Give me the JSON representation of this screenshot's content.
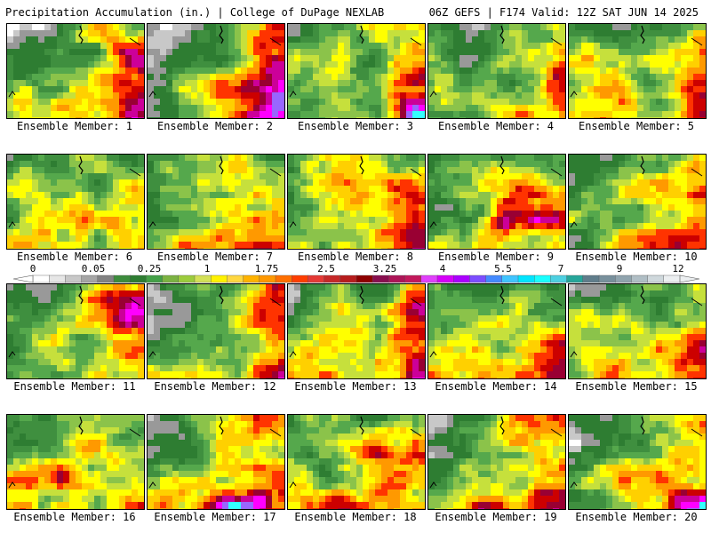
{
  "header": {
    "left": "Precipitation Accumulation (in.) | College of DuPage NEXLAB",
    "right": "06Z GEFS | F174 Valid: 12Z SAT JUN 14 2025"
  },
  "label_prefix": "Ensemble Member: ",
  "members": [
    1,
    2,
    3,
    4,
    5,
    6,
    7,
    8,
    9,
    10,
    11,
    12,
    13,
    14,
    15,
    16,
    17,
    18,
    19,
    20
  ],
  "colorbar": {
    "ticks": [
      "0",
      "0.05",
      "0.25",
      "1",
      "1.75",
      "2.5",
      "3.25",
      "4",
      "5.5",
      "7",
      "9",
      "12"
    ],
    "colors": [
      "#ffffff",
      "#e6e6e6",
      "#c8c8c8",
      "#a5a5a5",
      "#828282",
      "#3c8c3c",
      "#2e7d32",
      "#43a047",
      "#7cb342",
      "#9ccc3c",
      "#d4e157",
      "#fff200",
      "#ffd740",
      "#ffb300",
      "#ff9800",
      "#ff6f00",
      "#ff3d00",
      "#e53935",
      "#c62828",
      "#b71c1c",
      "#8e0000",
      "#880e4f",
      "#ad1457",
      "#c2185b",
      "#e040fb",
      "#d500f9",
      "#aa00ff",
      "#7c4dff",
      "#448aff",
      "#40c4ff",
      "#00e5ff",
      "#18ffff",
      "#4dd0e1",
      "#26a69a",
      "#607d8b",
      "#78909c",
      "#90a4ae",
      "#b0bec5",
      "#cfd8dc",
      "#eceff1"
    ]
  },
  "map_colors": [
    "#ffffff",
    "#c8c8c8",
    "#999999",
    "#2e7d32",
    "#3f8f3f",
    "#55a84c",
    "#8bc34a",
    "#c6e03c",
    "#ffff00",
    "#ffd000",
    "#ff9900",
    "#ff3300",
    "#cc0000",
    "#990033",
    "#cc0099",
    "#ff00ff",
    "#9966ff",
    "#33ffff"
  ]
}
